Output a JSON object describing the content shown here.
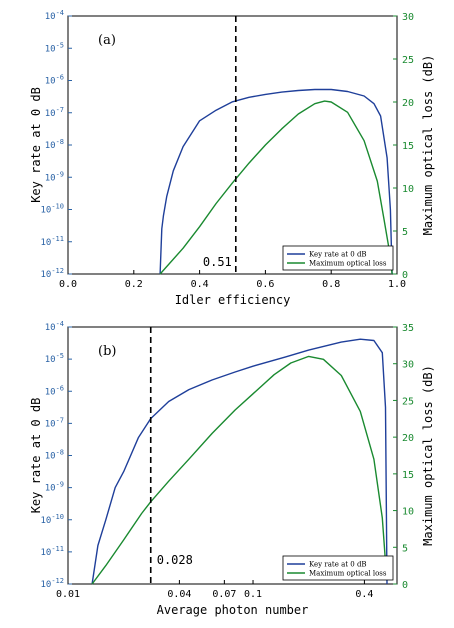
{
  "colors": {
    "key_rate": "#1f3f9a",
    "optical_loss": "#1a8a30",
    "left_axis": "#2b63a6",
    "right_axis": "#1a8a30",
    "marker": "#000000"
  },
  "chart_data": [
    {
      "type": "line",
      "panel_label": "(a)",
      "xlabel": "Idler efficiency",
      "ylabel_left": "Key rate at 0 dB",
      "ylabel_right": "Maximum optical loss (dB)",
      "xscale": "linear",
      "xlim": [
        0.0,
        1.0
      ],
      "xticks": [
        0.0,
        0.2,
        0.4,
        0.6,
        0.8,
        1.0
      ],
      "xtick_labels": [
        "0.0",
        "0.2",
        "0.4",
        "0.6",
        "0.8",
        "1.0"
      ],
      "ylim_left_exp": [
        -12,
        -4
      ],
      "ytick_left_labels": [
        {
          "base": "10",
          "exp": "-12"
        },
        {
          "base": "10",
          "exp": "-11"
        },
        {
          "base": "10",
          "exp": "-10"
        },
        {
          "base": "10",
          "exp": "-9"
        },
        {
          "base": "10",
          "exp": "-8"
        },
        {
          "base": "10",
          "exp": "-7"
        },
        {
          "base": "10",
          "exp": "-6"
        },
        {
          "base": "10",
          "exp": "-5"
        },
        {
          "base": "10",
          "exp": "-4"
        }
      ],
      "ylim_right": [
        0,
        30
      ],
      "yticks_right": [
        "0",
        "5",
        "10",
        "15",
        "20",
        "25",
        "30"
      ],
      "vline_x": 0.51,
      "vline_label": "0.51",
      "legend_position": "bottom-right",
      "series": [
        {
          "name": "Key rate at 0 dB",
          "axis": "left",
          "color_key": "key_rate",
          "x": [
            0.28,
            0.285,
            0.29,
            0.3,
            0.32,
            0.35,
            0.4,
            0.45,
            0.5,
            0.55,
            0.6,
            0.65,
            0.7,
            0.75,
            0.8,
            0.85,
            0.9,
            0.93,
            0.95,
            0.97,
            0.98,
            0.985
          ],
          "log10_y": [
            -12.0,
            -10.6,
            -10.2,
            -9.6,
            -8.8,
            -8.05,
            -7.25,
            -6.92,
            -6.66,
            -6.52,
            -6.43,
            -6.36,
            -6.31,
            -6.28,
            -6.28,
            -6.34,
            -6.48,
            -6.72,
            -7.1,
            -8.4,
            -10.0,
            -12.0
          ]
        },
        {
          "name": "Maximum optical loss",
          "axis": "right",
          "color_key": "optical_loss",
          "x": [
            0.28,
            0.35,
            0.4,
            0.45,
            0.5,
            0.55,
            0.6,
            0.65,
            0.7,
            0.75,
            0.78,
            0.8,
            0.85,
            0.9,
            0.94,
            0.96,
            0.98,
            0.985
          ],
          "y": [
            0.0,
            3.0,
            5.5,
            8.2,
            10.6,
            12.9,
            15.0,
            16.9,
            18.6,
            19.8,
            20.1,
            20.0,
            18.8,
            15.5,
            10.8,
            6.5,
            2.0,
            0.0
          ]
        }
      ]
    },
    {
      "type": "line",
      "panel_label": "(b)",
      "xlabel": "Average photon number",
      "ylabel_left": "Key rate at 0 dB",
      "ylabel_right": "Maximum optical loss (dB)",
      "xscale": "log",
      "xlim": [
        0.01,
        0.6
      ],
      "xticks": [
        0.01,
        0.04,
        0.07,
        0.1,
        0.4
      ],
      "xtick_labels": [
        "0.01",
        "0.04",
        "0.07",
        "0.1",
        "0.4"
      ],
      "ylim_left_exp": [
        -12,
        -4
      ],
      "ytick_left_labels": [
        {
          "base": "10",
          "exp": "-12"
        },
        {
          "base": "10",
          "exp": "-11"
        },
        {
          "base": "10",
          "exp": "-10"
        },
        {
          "base": "10",
          "exp": "-9"
        },
        {
          "base": "10",
          "exp": "-8"
        },
        {
          "base": "10",
          "exp": "-7"
        },
        {
          "base": "10",
          "exp": "-6"
        },
        {
          "base": "10",
          "exp": "-5"
        },
        {
          "base": "10",
          "exp": "-4"
        }
      ],
      "ylim_right": [
        0,
        35
      ],
      "yticks_right": [
        "0",
        "5",
        "10",
        "15",
        "20",
        "25",
        "30",
        "35"
      ],
      "vline_x": 0.028,
      "vline_label": "0.028",
      "legend_position": "bottom-right",
      "series": [
        {
          "name": "Key rate at 0 dB",
          "axis": "left",
          "color_key": "key_rate",
          "x": [
            0.0135,
            0.0145,
            0.016,
            0.018,
            0.02,
            0.024,
            0.028,
            0.035,
            0.045,
            0.06,
            0.08,
            0.1,
            0.15,
            0.2,
            0.3,
            0.38,
            0.45,
            0.5,
            0.52,
            0.53
          ],
          "log10_y": [
            -12.0,
            -10.8,
            -10.0,
            -9.0,
            -8.5,
            -7.45,
            -6.85,
            -6.32,
            -5.95,
            -5.65,
            -5.4,
            -5.22,
            -4.93,
            -4.72,
            -4.47,
            -4.38,
            -4.42,
            -4.8,
            -6.5,
            -12.0
          ]
        },
        {
          "name": "Maximum optical loss",
          "axis": "right",
          "color_key": "optical_loss",
          "x": [
            0.0135,
            0.016,
            0.02,
            0.025,
            0.028,
            0.035,
            0.045,
            0.06,
            0.08,
            0.1,
            0.13,
            0.16,
            0.2,
            0.24,
            0.3,
            0.38,
            0.45,
            0.5,
            0.52
          ],
          "y": [
            0.0,
            2.5,
            6.0,
            9.6,
            11.2,
            14.0,
            17.0,
            20.5,
            23.7,
            25.9,
            28.5,
            30.1,
            31.0,
            30.6,
            28.4,
            23.5,
            17.0,
            9.0,
            3.0
          ]
        }
      ]
    }
  ]
}
